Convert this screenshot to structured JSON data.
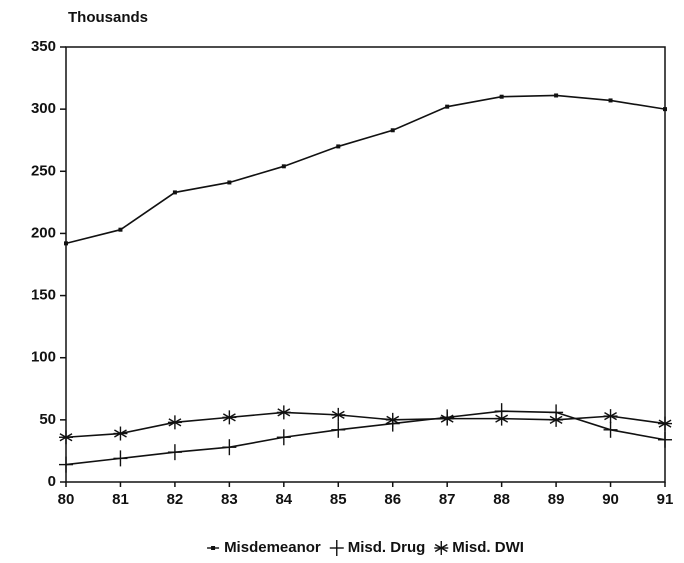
{
  "chart_data": {
    "type": "line",
    "y_axis_label": "Thousands",
    "categories": [
      "80",
      "81",
      "82",
      "83",
      "84",
      "85",
      "86",
      "87",
      "88",
      "89",
      "90",
      "91"
    ],
    "series": [
      {
        "name": "Misdemeanor",
        "color": "#111111",
        "marker": "square",
        "values": [
          192,
          203,
          233,
          241,
          254,
          270,
          283,
          302,
          310,
          311,
          307,
          300
        ]
      },
      {
        "name": "Misd. Drug",
        "color": "#111111",
        "marker": "plus",
        "values": [
          14,
          19,
          24,
          28,
          36,
          42,
          47,
          52,
          57,
          56,
          42,
          34
        ]
      },
      {
        "name": "Misd. DWI",
        "color": "#111111",
        "marker": "asterisk",
        "values": [
          36,
          39,
          48,
          52,
          56,
          54,
          50,
          51,
          51,
          50,
          53,
          47
        ]
      }
    ],
    "ylim": [
      0,
      350
    ],
    "yticks": [
      0,
      50,
      100,
      150,
      200,
      250,
      300,
      350
    ],
    "legend": "bottom"
  }
}
